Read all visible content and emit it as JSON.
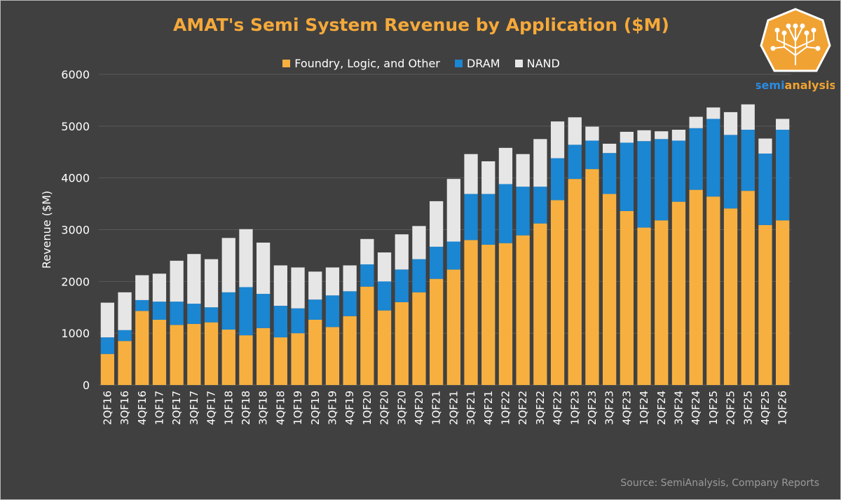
{
  "colors": {
    "background": "#404040",
    "foundry": "#F7B040",
    "dram": "#1B86D2",
    "nand": "#E6E6E6",
    "title": "#F5A93A",
    "axis_text": "#ffffff",
    "grid": "#5a5a5a",
    "source": "#9a9a9a"
  },
  "logo": {
    "text": "semianalysis",
    "text_part1": "semi",
    "text_part2": "analysis",
    "icon": "circuit-tree-icon"
  },
  "chart_data": {
    "type": "bar",
    "stacked": true,
    "title": "AMAT's Semi System Revenue by Application ($M)",
    "ylabel": "Revenue ($M)",
    "xlabel": "",
    "ylim": [
      0,
      6000
    ],
    "yticks": [
      0,
      1000,
      2000,
      3000,
      4000,
      5000,
      6000
    ],
    "grid": true,
    "legend_position": "top",
    "source": "Source: SemiAnalysis, Company Reports",
    "categories": [
      "2QF16",
      "3QF16",
      "4QF16",
      "1QF17",
      "2QF17",
      "3QF17",
      "4QF17",
      "1QF18",
      "2QF18",
      "3QF18",
      "4QF18",
      "1QF19",
      "2QF19",
      "3QF19",
      "4QF19",
      "1QF20",
      "2QF20",
      "3QF20",
      "4QF20",
      "1QF21",
      "2QF21",
      "3QF21",
      "4QF21",
      "1QF22",
      "2QF22",
      "3QF22",
      "4QF22",
      "1QF23",
      "2QF23",
      "3QF23",
      "4QF23",
      "1QF24",
      "2QF24",
      "3QF24",
      "4QF24",
      "1QF25",
      "2QF25",
      "3QF25",
      "4QF25",
      "1QF26"
    ],
    "series": [
      {
        "name": "Foundry, Logic, and Other",
        "color": "#F7B040",
        "values": [
          600,
          850,
          1430,
          1260,
          1160,
          1180,
          1210,
          1070,
          960,
          1100,
          920,
          1000,
          1260,
          1120,
          1330,
          1900,
          1440,
          1600,
          1790,
          2050,
          2230,
          2800,
          2710,
          2740,
          2890,
          3120,
          3570,
          3980,
          4170,
          3690,
          3360,
          3040,
          3180,
          3540,
          3770,
          3640,
          3410,
          3750,
          3090,
          3180
        ]
      },
      {
        "name": "DRAM",
        "color": "#1B86D2",
        "values": [
          320,
          210,
          210,
          350,
          450,
          390,
          290,
          720,
          930,
          660,
          610,
          480,
          390,
          610,
          480,
          430,
          560,
          630,
          640,
          620,
          540,
          890,
          980,
          1140,
          940,
          710,
          810,
          660,
          550,
          790,
          1320,
          1670,
          1570,
          1180,
          1190,
          1500,
          1420,
          1180,
          1380,
          1750
        ]
      },
      {
        "name": "NAND",
        "color": "#E6E6E6",
        "values": [
          670,
          730,
          480,
          540,
          790,
          960,
          930,
          1050,
          1120,
          990,
          780,
          790,
          540,
          540,
          500,
          490,
          560,
          680,
          640,
          880,
          1210,
          770,
          630,
          700,
          630,
          920,
          710,
          530,
          270,
          180,
          210,
          210,
          150,
          210,
          220,
          220,
          440,
          490,
          290,
          210
        ]
      }
    ]
  }
}
